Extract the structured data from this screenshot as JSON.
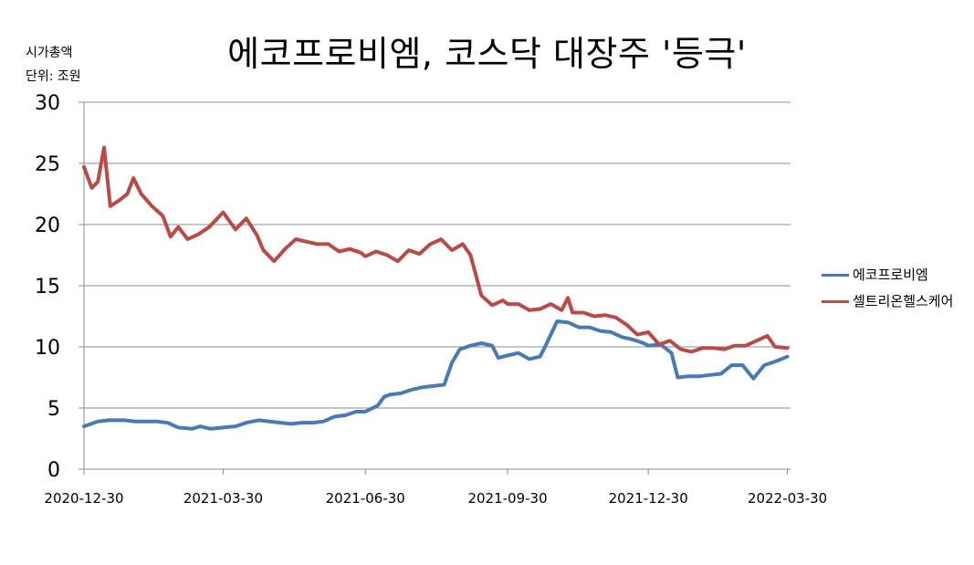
{
  "title": "에코프로비엠, 코스닥 대장주 '등극'",
  "unit_label_1": "시가총액",
  "unit_label_2": "단위: 조원",
  "colors": {
    "series1": "#4a7ab5",
    "series2": "#b84a47",
    "grid": "#8c8c8c"
  },
  "chart_data": {
    "type": "line",
    "ylim": [
      0,
      30
    ],
    "yticks": [
      "0",
      "5",
      "10",
      "15",
      "20",
      "25",
      "30"
    ],
    "xticks": [
      "2020-12-30",
      "2021-03-30",
      "2021-06-30",
      "2021-09-30",
      "2021-12-30",
      "2022-03-30"
    ],
    "xlim": [
      "2020-12-30",
      "2022-04-01"
    ],
    "grid": true,
    "legend_position": "right",
    "series": [
      {
        "name": "에코프로비엠",
        "points": [
          [
            "2020-12-30",
            3.5
          ],
          [
            "2021-01-08",
            3.9
          ],
          [
            "2021-01-15",
            4.0
          ],
          [
            "2021-01-25",
            4.0
          ],
          [
            "2021-02-01",
            3.9
          ],
          [
            "2021-02-15",
            3.9
          ],
          [
            "2021-02-22",
            3.8
          ],
          [
            "2021-03-01",
            3.4
          ],
          [
            "2021-03-10",
            3.3
          ],
          [
            "2021-03-15",
            3.5
          ],
          [
            "2021-03-22",
            3.3
          ],
          [
            "2021-03-30",
            3.4
          ],
          [
            "2021-04-07",
            3.5
          ],
          [
            "2021-04-14",
            3.8
          ],
          [
            "2021-04-22",
            4.0
          ],
          [
            "2021-04-29",
            3.9
          ],
          [
            "2021-05-06",
            3.8
          ],
          [
            "2021-05-13",
            3.7
          ],
          [
            "2021-05-20",
            3.8
          ],
          [
            "2021-05-27",
            3.8
          ],
          [
            "2021-06-03",
            3.9
          ],
          [
            "2021-06-10",
            4.3
          ],
          [
            "2021-06-17",
            4.4
          ],
          [
            "2021-06-24",
            4.7
          ],
          [
            "2021-06-30",
            4.7
          ],
          [
            "2021-07-08",
            5.2
          ],
          [
            "2021-07-12",
            5.9
          ],
          [
            "2021-07-16",
            6.1
          ],
          [
            "2021-07-23",
            6.2
          ],
          [
            "2021-07-30",
            6.5
          ],
          [
            "2021-08-06",
            6.7
          ],
          [
            "2021-08-13",
            6.8
          ],
          [
            "2021-08-20",
            6.9
          ],
          [
            "2021-08-25",
            8.7
          ],
          [
            "2021-08-30",
            9.8
          ],
          [
            "2021-09-06",
            10.1
          ],
          [
            "2021-09-13",
            10.3
          ],
          [
            "2021-09-20",
            10.1
          ],
          [
            "2021-09-24",
            9.1
          ],
          [
            "2021-09-30",
            9.3
          ],
          [
            "2021-10-07",
            9.5
          ],
          [
            "2021-10-14",
            9.0
          ],
          [
            "2021-10-21",
            9.2
          ],
          [
            "2021-10-25",
            10.2
          ],
          [
            "2021-11-01",
            12.1
          ],
          [
            "2021-11-08",
            12.0
          ],
          [
            "2021-11-15",
            11.6
          ],
          [
            "2021-11-22",
            11.6
          ],
          [
            "2021-11-29",
            11.3
          ],
          [
            "2021-12-06",
            11.2
          ],
          [
            "2021-12-13",
            10.8
          ],
          [
            "2021-12-20",
            10.6
          ],
          [
            "2021-12-27",
            10.3
          ],
          [
            "2021-12-30",
            10.1
          ],
          [
            "2022-01-07",
            10.2
          ],
          [
            "2022-01-14",
            9.5
          ],
          [
            "2022-01-18",
            7.5
          ],
          [
            "2022-01-25",
            7.6
          ],
          [
            "2022-02-01",
            7.6
          ],
          [
            "2022-02-08",
            7.7
          ],
          [
            "2022-02-15",
            7.8
          ],
          [
            "2022-02-22",
            8.5
          ],
          [
            "2022-03-01",
            8.5
          ],
          [
            "2022-03-08",
            7.4
          ],
          [
            "2022-03-15",
            8.5
          ],
          [
            "2022-03-22",
            8.8
          ],
          [
            "2022-03-30",
            9.2
          ]
        ]
      },
      {
        "name": "셀트리온헬스케어",
        "points": [
          [
            "2020-12-30",
            24.7
          ],
          [
            "2021-01-04",
            23.0
          ],
          [
            "2021-01-08",
            23.5
          ],
          [
            "2021-01-12",
            26.3
          ],
          [
            "2021-01-16",
            21.5
          ],
          [
            "2021-01-22",
            22.0
          ],
          [
            "2021-01-27",
            22.5
          ],
          [
            "2021-01-31",
            23.8
          ],
          [
            "2021-02-05",
            22.5
          ],
          [
            "2021-02-12",
            21.5
          ],
          [
            "2021-02-19",
            20.7
          ],
          [
            "2021-02-24",
            19.0
          ],
          [
            "2021-03-01",
            19.8
          ],
          [
            "2021-03-07",
            18.8
          ],
          [
            "2021-03-14",
            19.2
          ],
          [
            "2021-03-21",
            19.8
          ],
          [
            "2021-03-30",
            21.0
          ],
          [
            "2021-04-07",
            19.6
          ],
          [
            "2021-04-14",
            20.5
          ],
          [
            "2021-04-21",
            19.1
          ],
          [
            "2021-04-25",
            17.9
          ],
          [
            "2021-05-02",
            17.0
          ],
          [
            "2021-05-09",
            18.0
          ],
          [
            "2021-05-16",
            18.8
          ],
          [
            "2021-05-23",
            18.6
          ],
          [
            "2021-05-30",
            18.4
          ],
          [
            "2021-06-06",
            18.4
          ],
          [
            "2021-06-13",
            17.8
          ],
          [
            "2021-06-20",
            18.0
          ],
          [
            "2021-06-27",
            17.7
          ],
          [
            "2021-06-30",
            17.4
          ],
          [
            "2021-07-07",
            17.8
          ],
          [
            "2021-07-14",
            17.5
          ],
          [
            "2021-07-21",
            17.0
          ],
          [
            "2021-07-28",
            17.9
          ],
          [
            "2021-08-04",
            17.6
          ],
          [
            "2021-08-11",
            18.4
          ],
          [
            "2021-08-18",
            18.8
          ],
          [
            "2021-08-25",
            17.9
          ],
          [
            "2021-09-01",
            18.4
          ],
          [
            "2021-09-06",
            17.5
          ],
          [
            "2021-09-13",
            14.2
          ],
          [
            "2021-09-20",
            13.4
          ],
          [
            "2021-09-27",
            13.8
          ],
          [
            "2021-09-30",
            13.5
          ],
          [
            "2021-10-07",
            13.5
          ],
          [
            "2021-10-14",
            13.0
          ],
          [
            "2021-10-21",
            13.1
          ],
          [
            "2021-10-28",
            13.5
          ],
          [
            "2021-11-04",
            13.0
          ],
          [
            "2021-11-08",
            14.0
          ],
          [
            "2021-11-11",
            12.8
          ],
          [
            "2021-11-18",
            12.8
          ],
          [
            "2021-11-25",
            12.5
          ],
          [
            "2021-12-02",
            12.6
          ],
          [
            "2021-12-09",
            12.4
          ],
          [
            "2021-12-16",
            11.8
          ],
          [
            "2021-12-23",
            11.0
          ],
          [
            "2021-12-30",
            11.2
          ],
          [
            "2022-01-06",
            10.2
          ],
          [
            "2022-01-13",
            10.5
          ],
          [
            "2022-01-20",
            9.8
          ],
          [
            "2022-01-27",
            9.6
          ],
          [
            "2022-02-03",
            9.9
          ],
          [
            "2022-02-10",
            9.9
          ],
          [
            "2022-02-17",
            9.8
          ],
          [
            "2022-02-24",
            10.1
          ],
          [
            "2022-03-03",
            10.1
          ],
          [
            "2022-03-10",
            10.5
          ],
          [
            "2022-03-17",
            10.9
          ],
          [
            "2022-03-22",
            10.0
          ],
          [
            "2022-03-30",
            9.9
          ]
        ]
      }
    ]
  }
}
